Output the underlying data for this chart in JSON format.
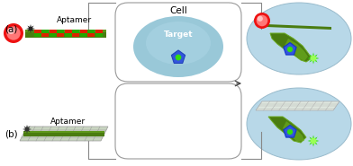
{
  "bg_color": "#ffffff",
  "label_a": "(a)",
  "label_b": "(b)",
  "aptamer_label": "Aptamer",
  "cell_label": "Cell",
  "target_label": "Target",
  "green_dark": "#4a7c10",
  "green_mid": "#6aaa20",
  "green_light": "#88cc30",
  "red_ball": "#ee1111",
  "red_glow": "#ff7777",
  "blue_pent": "#3355dd",
  "green_star_fc": "#33dd11",
  "black_star": "#222222",
  "nano_red": "#dd2200",
  "nano_green": "#22aa00",
  "cell_box_ec": "#999999",
  "oval_fc": "#b8d8e8",
  "oval_ec": "#99bbcc",
  "cell_oval_fc_outer": "#99c8d8",
  "cell_oval_fc_inner": "#aad4e4",
  "go_fc": "#c8d4c0",
  "go_ec": "#999999",
  "conn_color": "#888888"
}
